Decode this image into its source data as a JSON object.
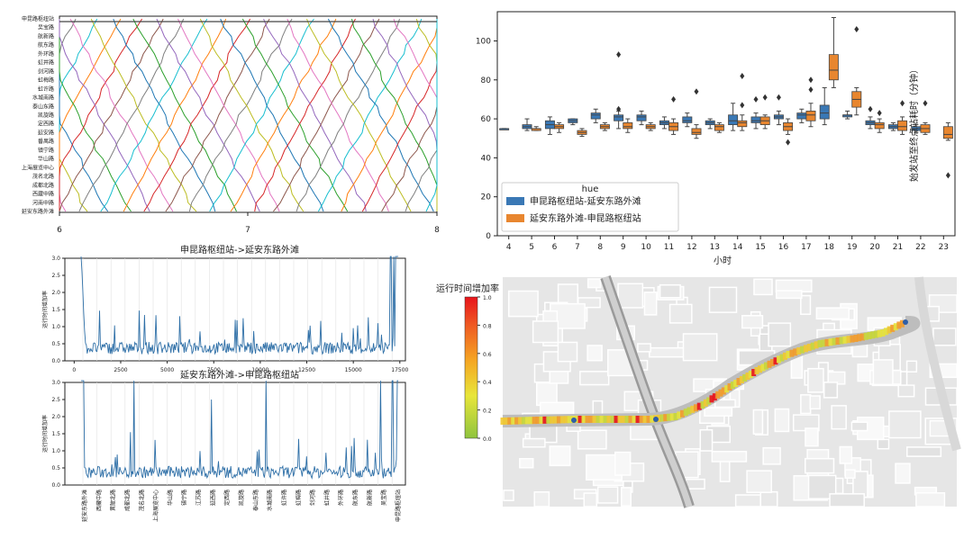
{
  "time_space": {
    "stations_top_to_bottom": [
      "申昆路枢纽站",
      "吴宝路",
      "航新路",
      "航东路",
      "外环路",
      "虹井路",
      "剑河路",
      "虹梅路",
      "虹许路",
      "水城南路",
      "泰山东路",
      "凯旋路",
      "定西路",
      "延安路",
      "番禺路",
      "镇宁路",
      "华山路",
      "上海展览中心",
      "茂名北路",
      "成都北路",
      "西藏中路",
      "河南中路",
      "延安东路外滩"
    ],
    "x_ticks": [
      "6",
      "7",
      "8"
    ]
  },
  "chart_data": [
    {
      "type": "box",
      "xlabel": "小时",
      "ylabel": "始发站至终点站耗时（分钟）",
      "ylim": [
        0,
        115
      ],
      "y_ticks": [
        0,
        20,
        40,
        60,
        80,
        100
      ],
      "categories": [
        "4",
        "5",
        "6",
        "7",
        "8",
        "9",
        "10",
        "11",
        "12",
        "13",
        "14",
        "15",
        "16",
        "17",
        "18",
        "19",
        "20",
        "21",
        "22",
        "23"
      ],
      "legend_title": "hue",
      "legend_position": "lower-left",
      "series": [
        {
          "name": "申昆路枢纽站-延安东路外滩",
          "color": "#3a78b5",
          "boxes": [
            [
              55,
              55,
              55,
              55,
              55
            ],
            [
              54,
              55,
              56,
              57,
              60
            ],
            [
              52,
              55,
              57,
              59,
              61
            ],
            [
              57,
              58,
              59,
              60,
              60
            ],
            [
              58,
              60,
              62,
              63,
              65
            ],
            [
              55,
              59,
              61,
              62,
              64
            ],
            [
              57,
              59,
              61,
              62,
              64
            ],
            [
              55,
              57,
              58,
              59,
              61
            ],
            [
              56,
              58,
              59,
              61,
              63
            ],
            [
              55,
              57,
              58,
              59,
              60
            ],
            [
              54,
              57,
              59,
              62,
              68
            ],
            [
              55,
              58,
              59,
              61,
              63
            ],
            [
              57,
              60,
              61,
              62,
              64
            ],
            [
              58,
              60,
              62,
              63,
              65
            ],
            [
              57,
              60,
              63,
              67,
              76
            ],
            [
              60,
              61,
              62,
              62,
              64
            ],
            [
              55,
              57,
              58,
              59,
              61
            ],
            [
              54,
              55,
              56,
              57,
              58
            ],
            [
              53,
              54,
              55,
              56,
              57
            ],
            null
          ]
        },
        {
          "name": "延安东路外滩-申昆路枢纽站",
          "color": "#e8862f",
          "boxes": [
            null,
            [
              54,
              54,
              55,
              55,
              56
            ],
            [
              53,
              55,
              56,
              57,
              58
            ],
            [
              51,
              52,
              53,
              54,
              55
            ],
            [
              54,
              55,
              56,
              57,
              58
            ],
            [
              53,
              55,
              56,
              58,
              60
            ],
            [
              54,
              55,
              56,
              57,
              58
            ],
            [
              52,
              54,
              56,
              58,
              60
            ],
            [
              50,
              52,
              53,
              55,
              57
            ],
            [
              53,
              54,
              56,
              57,
              58
            ],
            [
              54,
              56,
              58,
              59,
              62
            ],
            [
              55,
              57,
              59,
              61,
              62
            ],
            [
              52,
              54,
              56,
              58,
              60
            ],
            [
              56,
              59,
              62,
              64,
              68
            ],
            [
              76,
              80,
              85,
              93,
              112
            ],
            [
              62,
              66,
              70,
              74,
              76
            ],
            [
              53,
              55,
              57,
              58,
              60
            ],
            [
              52,
              54,
              56,
              59,
              61
            ],
            [
              52,
              53,
              55,
              57,
              58
            ],
            [
              49,
              50,
              52,
              56,
              58
            ]
          ]
        }
      ]
    },
    {
      "type": "line",
      "title": "申昆路枢纽站->延安东路外滩",
      "ylabel": "运行时间增加率",
      "ylim": [
        0,
        3.0
      ],
      "y_ticks": [
        "0.0",
        "0.5",
        "1.0",
        "1.5",
        "2.0",
        "2.5",
        "3.0"
      ],
      "x_ticks": [
        "0",
        "2500",
        "5000",
        "7500",
        "10000",
        "12500",
        "15000",
        "17500"
      ],
      "xlim": [
        -500,
        17800
      ]
    },
    {
      "type": "line",
      "title": "延安东路外滩->申昆路枢纽站",
      "ylabel": "运行时间增加率",
      "ylim": [
        0,
        3.0
      ],
      "y_ticks": [
        "0.0",
        "0.5",
        "1.0",
        "1.5",
        "2.0",
        "2.5",
        "3.0"
      ],
      "x_tick_labels": [
        "延安东路外滩",
        "西藏中路",
        "黄陂北路",
        "成都北路",
        "茂名北路",
        "上海展览中心",
        "华山路",
        "镇宁路",
        "江苏路",
        "延西路",
        "定西路",
        "凯旋路",
        "泰山东路",
        "水城南路",
        "虹许路",
        "虹梅路",
        "剑河路",
        "虹井路",
        "外环路",
        "航东路",
        "航新路",
        "吴宝路",
        "申昆路枢纽站"
      ]
    }
  ],
  "map": {
    "colorbar_title": "运行时间增加率",
    "colorbar_ticks": [
      "0.0",
      "0.2",
      "0.4",
      "0.6",
      "0.8",
      "1.0"
    ]
  }
}
